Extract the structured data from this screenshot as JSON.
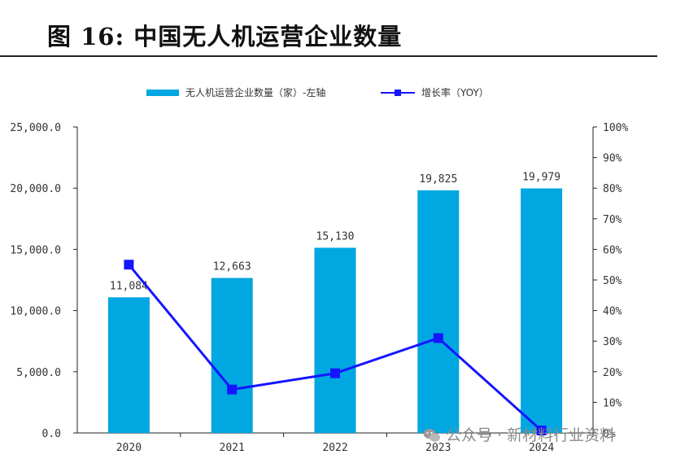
{
  "figure": {
    "title": "图 16:  中国无人机运营企业数量"
  },
  "watermark": {
    "text": "公众号 · 新材料行业资料"
  },
  "colors": {
    "bar": "#00a7e1",
    "line": "#1515ff",
    "axis": "#222222",
    "text": "#333333"
  },
  "chart_data": {
    "type": "bar+line",
    "categories": [
      "2020",
      "2021",
      "2022",
      "2023",
      "2024"
    ],
    "series": [
      {
        "name": "无人机运营企业数量（家）-左轴",
        "type": "bar",
        "axis": "left",
        "values": [
          11084,
          12663,
          15130,
          19825,
          19979
        ],
        "labels": [
          "11,084",
          "12,663",
          "15,130",
          "19,825",
          "19,979"
        ]
      },
      {
        "name": "增长率（YOY）",
        "type": "line",
        "axis": "right",
        "values": [
          55,
          14.2,
          19.5,
          31,
          0.8
        ]
      }
    ],
    "left_axis": {
      "min": 0,
      "max": 25000,
      "ticks": [
        "0.0",
        "5,000.0",
        "10,000.0",
        "15,000.0",
        "20,000.0",
        "25,000.0"
      ]
    },
    "right_axis": {
      "min": 0,
      "max": 100,
      "ticks": [
        "0%",
        "10%",
        "20%",
        "30%",
        "40%",
        "50%",
        "60%",
        "70%",
        "80%",
        "90%",
        "100%"
      ]
    },
    "legend_position": "top-center",
    "grid": false
  }
}
